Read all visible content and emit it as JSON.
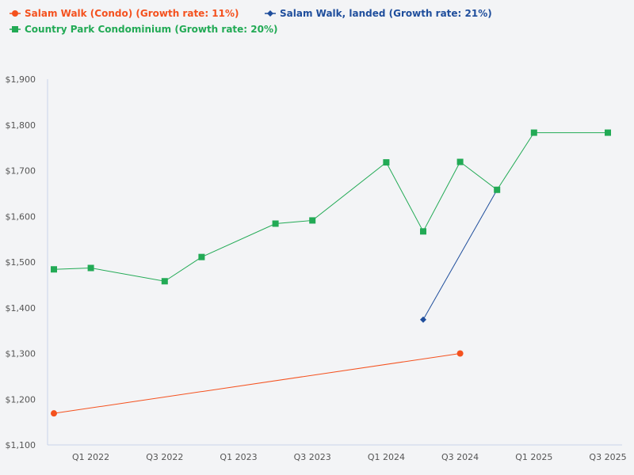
{
  "chart_data": {
    "type": "line",
    "title": "",
    "xlabel": "",
    "ylabel": "",
    "ylim": [
      1100,
      1900
    ],
    "yticks": [
      "$1,100",
      "$1,200",
      "$1,300",
      "$1,400",
      "$1,500",
      "$1,600",
      "$1,700",
      "$1,800",
      "$1,900"
    ],
    "ytick_values": [
      1100,
      1200,
      1300,
      1400,
      1500,
      1600,
      1700,
      1800,
      1900
    ],
    "categories": [
      "Q4 2021",
      "Q1 2022",
      "Q2 2022",
      "Q3 2022",
      "Q4 2022",
      "Q1 2023",
      "Q2 2023",
      "Q3 2023",
      "Q4 2023",
      "Q1 2024",
      "Q2 2024",
      "Q3 2024",
      "Q4 2024",
      "Q1 2025",
      "Q2 2025",
      "Q3 2025"
    ],
    "xtick_labels": [
      "Q1 2022",
      "Q3 2022",
      "Q1 2023",
      "Q3 2023",
      "Q1 2024",
      "Q3 2024",
      "Q1 2025",
      "Q3 2025"
    ],
    "grid": false,
    "legend_placement": "top-left",
    "series": [
      {
        "name": "Salam Walk (Condo) (Growth rate: 11%)",
        "color": "#f4511e",
        "marker": "circle",
        "values": [
          1169,
          null,
          null,
          null,
          null,
          null,
          null,
          null,
          null,
          null,
          null,
          1300,
          null,
          null,
          null,
          null
        ]
      },
      {
        "name": "Salam Walk, landed (Growth rate: 21%)",
        "color": "#1f4e9c",
        "marker": "diamond",
        "values": [
          null,
          null,
          null,
          null,
          null,
          null,
          null,
          null,
          null,
          null,
          1374,
          null,
          1658,
          null,
          null,
          null
        ]
      },
      {
        "name": "Country Park Condominium (Growth rate: 20%)",
        "color": "#22aa55",
        "marker": "square",
        "values": [
          1484,
          1487,
          null,
          1458,
          1511,
          null,
          1584,
          1591,
          null,
          1718,
          1567,
          1719,
          1658,
          1783,
          null,
          1783
        ]
      }
    ]
  }
}
